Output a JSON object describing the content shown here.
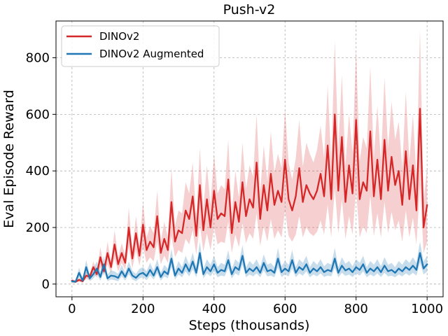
{
  "chart_data": {
    "type": "line",
    "title": "Push-v2",
    "xlabel": "Steps (thousands)",
    "ylabel": "Eval Episode Reward",
    "xlim": [
      -45,
      1045
    ],
    "ylim": [
      -45,
      930
    ],
    "xticks": [
      0,
      200,
      400,
      600,
      800,
      1000
    ],
    "yticks": [
      0,
      200,
      400,
      600,
      800
    ],
    "grid": true,
    "legend_position": "top-left",
    "x": [
      0,
      10,
      20,
      30,
      40,
      50,
      60,
      70,
      80,
      90,
      100,
      110,
      120,
      130,
      140,
      150,
      160,
      170,
      180,
      190,
      200,
      210,
      220,
      230,
      240,
      250,
      260,
      270,
      280,
      290,
      300,
      310,
      320,
      330,
      340,
      350,
      360,
      370,
      380,
      390,
      400,
      410,
      420,
      430,
      440,
      450,
      460,
      470,
      480,
      490,
      500,
      510,
      520,
      530,
      540,
      550,
      560,
      570,
      580,
      590,
      600,
      610,
      620,
      630,
      640,
      650,
      660,
      670,
      680,
      690,
      700,
      710,
      720,
      730,
      740,
      750,
      760,
      770,
      780,
      790,
      800,
      810,
      820,
      830,
      840,
      850,
      860,
      870,
      880,
      890,
      900,
      910,
      920,
      930,
      940,
      950,
      960,
      970,
      980,
      990,
      1000
    ],
    "series": [
      {
        "name": "DINOv2",
        "color": "#d62728",
        "values": [
          12,
          8,
          15,
          10,
          30,
          25,
          60,
          35,
          95,
          45,
          110,
          60,
          140,
          70,
          110,
          75,
          200,
          90,
          180,
          100,
          210,
          120,
          150,
          130,
          240,
          110,
          160,
          120,
          290,
          150,
          190,
          180,
          260,
          230,
          310,
          170,
          350,
          190,
          300,
          200,
          330,
          230,
          250,
          240,
          370,
          180,
          290,
          220,
          360,
          240,
          300,
          270,
          430,
          230,
          350,
          260,
          390,
          280,
          330,
          290,
          440,
          300,
          260,
          310,
          410,
          290,
          350,
          320,
          300,
          330,
          390,
          310,
          490,
          300,
          600,
          330,
          520,
          290,
          420,
          320,
          580,
          300,
          360,
          330,
          540,
          310,
          440,
          300,
          510,
          330,
          450,
          350,
          400,
          280,
          470,
          300,
          420,
          260,
          620,
          200,
          280
        ],
        "lower": [
          6,
          4,
          8,
          5,
          18,
          14,
          40,
          22,
          60,
          30,
          70,
          40,
          90,
          45,
          75,
          50,
          130,
          55,
          120,
          65,
          130,
          75,
          95,
          80,
          150,
          70,
          100,
          75,
          170,
          95,
          120,
          110,
          160,
          140,
          190,
          105,
          210,
          115,
          180,
          120,
          200,
          140,
          150,
          145,
          220,
          110,
          175,
          130,
          215,
          145,
          180,
          160,
          250,
          135,
          205,
          150,
          230,
          160,
          190,
          165,
          260,
          170,
          150,
          175,
          240,
          165,
          200,
          180,
          170,
          185,
          225,
          175,
          280,
          165,
          340,
          180,
          300,
          160,
          240,
          175,
          330,
          165,
          205,
          180,
          310,
          170,
          250,
          165,
          290,
          180,
          255,
          190,
          225,
          150,
          260,
          165,
          235,
          140,
          350,
          110,
          150
        ],
        "upper": [
          18,
          12,
          22,
          15,
          42,
          36,
          80,
          48,
          130,
          60,
          150,
          80,
          190,
          95,
          145,
          100,
          270,
          125,
          240,
          135,
          290,
          165,
          205,
          180,
          330,
          150,
          220,
          165,
          410,
          205,
          260,
          250,
          360,
          320,
          430,
          235,
          480,
          265,
          420,
          280,
          460,
          320,
          350,
          335,
          510,
          250,
          400,
          305,
          500,
          335,
          420,
          380,
          600,
          325,
          490,
          365,
          540,
          395,
          460,
          410,
          620,
          430,
          370,
          445,
          580,
          415,
          500,
          460,
          430,
          475,
          560,
          445,
          700,
          435,
          860,
          475,
          740,
          420,
          600,
          465,
          830,
          435,
          520,
          480,
          770,
          450,
          630,
          435,
          730,
          480,
          645,
          510,
          575,
          410,
          680,
          435,
          600,
          380,
          900,
          295,
          410
        ]
      },
      {
        "name": "DINOv2 Augmented",
        "color": "#1f77b4",
        "values": [
          10,
          8,
          40,
          12,
          60,
          20,
          35,
          55,
          25,
          70,
          20,
          30,
          28,
          22,
          45,
          25,
          55,
          30,
          22,
          35,
          40,
          28,
          50,
          30,
          60,
          25,
          45,
          35,
          90,
          30,
          55,
          40,
          70,
          45,
          80,
          40,
          110,
          35,
          60,
          45,
          70,
          40,
          50,
          45,
          85,
          35,
          60,
          50,
          100,
          40,
          55,
          45,
          60,
          40,
          75,
          45,
          50,
          40,
          90,
          42,
          55,
          45,
          85,
          40,
          60,
          50,
          70,
          40,
          55,
          45,
          60,
          42,
          50,
          45,
          90,
          40,
          65,
          48,
          55,
          42,
          60,
          50,
          70,
          40,
          55,
          45,
          60,
          42,
          65,
          45,
          50,
          40,
          55,
          45,
          60,
          50,
          65,
          50,
          110,
          55,
          70
        ],
        "lower": [
          5,
          4,
          25,
          6,
          40,
          10,
          20,
          35,
          12,
          45,
          10,
          16,
          14,
          10,
          28,
          12,
          35,
          16,
          10,
          20,
          24,
          14,
          30,
          16,
          38,
          12,
          27,
          20,
          60,
          16,
          34,
          24,
          45,
          27,
          52,
          24,
          75,
          20,
          38,
          27,
          45,
          24,
          30,
          27,
          56,
          20,
          38,
          30,
          68,
          24,
          34,
          27,
          38,
          24,
          48,
          27,
          30,
          24,
          58,
          25,
          34,
          27,
          55,
          24,
          38,
          30,
          45,
          24,
          34,
          27,
          38,
          25,
          30,
          27,
          58,
          24,
          40,
          29,
          34,
          25,
          38,
          30,
          45,
          24,
          34,
          27,
          38,
          25,
          40,
          27,
          30,
          24,
          34,
          27,
          38,
          30,
          40,
          30,
          75,
          34,
          44
        ],
        "upper": [
          16,
          12,
          58,
          20,
          85,
          34,
          55,
          80,
          42,
          100,
          34,
          48,
          45,
          36,
          68,
          40,
          80,
          47,
          36,
          54,
          60,
          45,
          75,
          48,
          88,
          40,
          68,
          54,
          125,
          48,
          82,
          60,
          100,
          68,
          112,
          60,
          150,
          54,
          88,
          68,
          100,
          60,
          75,
          68,
          120,
          54,
          88,
          75,
          138,
          60,
          82,
          68,
          88,
          60,
          105,
          68,
          75,
          60,
          128,
          63,
          82,
          68,
          120,
          60,
          88,
          75,
          100,
          60,
          82,
          68,
          88,
          63,
          75,
          68,
          128,
          60,
          95,
          72,
          82,
          63,
          88,
          75,
          100,
          60,
          82,
          68,
          88,
          63,
          95,
          68,
          75,
          60,
          82,
          68,
          88,
          75,
          95,
          75,
          150,
          80,
          100
        ]
      }
    ]
  }
}
